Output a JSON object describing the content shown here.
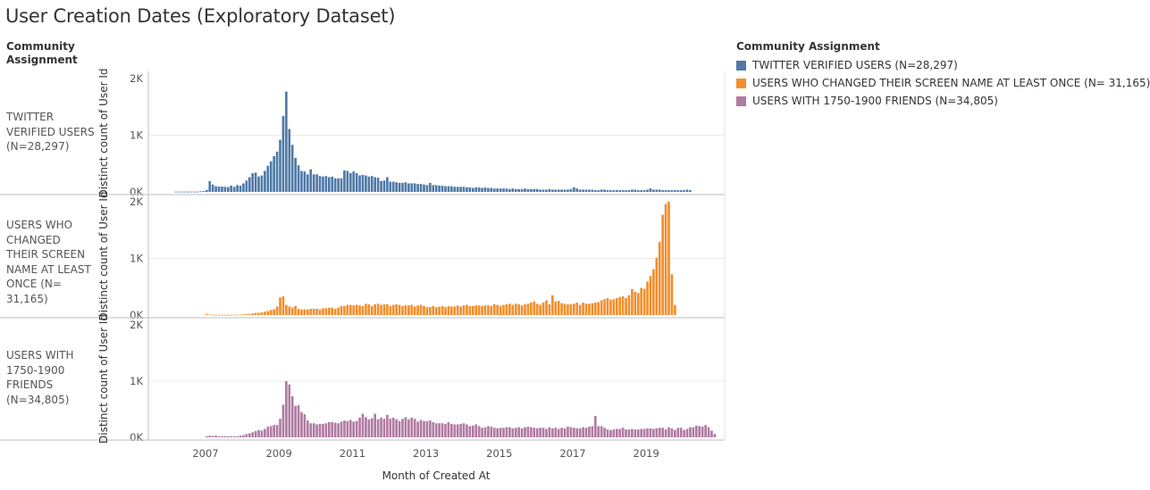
{
  "title": "User Creation Dates (Exploratory Dataset)",
  "row_header": "Community Assignment",
  "legend": {
    "title": "Community Assignment",
    "items": [
      {
        "label": "TWITTER VERIFIED USERS (N=28,297)",
        "color": "#4e79a7"
      },
      {
        "label": "USERS WHO CHANGED THEIR SCREEN NAME AT LEAST ONCE (N= 31,165)",
        "color": "#f28e2b"
      },
      {
        "label": "USERS WITH 1750-1900 FRIENDS (N=34,805)",
        "color": "#b07aa1"
      }
    ]
  },
  "row_labels": [
    "TWITTER VERIFIED USERS (N=28,297)",
    "USERS WHO CHANGED THEIR SCREEN NAME AT LEAST ONCE (N= 31,165)",
    "USERS WITH 1750-1900 FRIENDS (N=34,805)"
  ],
  "chart_data": {
    "type": "bar",
    "xlabel": "Month of Created At",
    "ylabel": "Distinct count of User Id",
    "x_ticks": [
      "2007",
      "2009",
      "2011",
      "2013",
      "2015",
      "2017",
      "2019"
    ],
    "y_ticks": [
      "0K",
      "1K",
      "2K"
    ],
    "ylim": [
      0,
      2000
    ],
    "x_start": "2006-03",
    "grid": true,
    "series": [
      {
        "name": "TWITTER VERIFIED USERS (N=28,297)",
        "color": "#4e79a7",
        "values": [
          5,
          5,
          5,
          5,
          5,
          5,
          5,
          5,
          10,
          15,
          35,
          190,
          130,
          100,
          95,
          95,
          90,
          85,
          110,
          90,
          120,
          110,
          150,
          200,
          260,
          330,
          340,
          270,
          290,
          370,
          460,
          540,
          630,
          710,
          920,
          1340,
          1770,
          1110,
          830,
          600,
          470,
          370,
          360,
          310,
          400,
          310,
          310,
          280,
          270,
          280,
          260,
          270,
          240,
          240,
          240,
          380,
          370,
          330,
          360,
          330,
          290,
          300,
          290,
          270,
          280,
          260,
          250,
          190,
          200,
          260,
          180,
          180,
          170,
          160,
          160,
          170,
          150,
          150,
          150,
          140,
          140,
          130,
          120,
          160,
          120,
          120,
          110,
          110,
          100,
          100,
          100,
          90,
          90,
          90,
          90,
          80,
          80,
          70,
          80,
          80,
          70,
          80,
          70,
          70,
          60,
          60,
          60,
          60,
          60,
          50,
          60,
          50,
          50,
          50,
          60,
          50,
          50,
          50,
          50,
          40,
          40,
          40,
          50,
          40,
          40,
          40,
          40,
          40,
          40,
          50,
          80,
          60,
          40,
          40,
          40,
          40,
          40,
          30,
          30,
          40,
          40,
          30,
          30,
          30,
          30,
          30,
          30,
          30,
          30,
          40,
          40,
          30,
          30,
          30,
          40,
          60,
          40,
          40,
          40,
          30,
          30,
          30,
          30,
          30,
          30,
          30,
          30,
          40,
          30,
          0,
          0
        ]
      },
      {
        "name": "USERS WHO CHANGED THEIR SCREEN NAME AT LEAST ONCE (N= 31,165)",
        "color": "#f28e2b",
        "values": [
          0,
          0,
          0,
          0,
          0,
          0,
          0,
          0,
          0,
          0,
          20,
          10,
          5,
          5,
          5,
          5,
          5,
          5,
          5,
          5,
          5,
          10,
          10,
          20,
          20,
          30,
          40,
          40,
          50,
          60,
          70,
          90,
          100,
          150,
          310,
          330,
          180,
          150,
          130,
          160,
          110,
          100,
          100,
          100,
          110,
          110,
          110,
          100,
          120,
          120,
          130,
          130,
          110,
          130,
          160,
          160,
          180,
          180,
          170,
          180,
          170,
          160,
          200,
          190,
          160,
          190,
          200,
          180,
          190,
          190,
          160,
          180,
          190,
          180,
          160,
          170,
          170,
          180,
          150,
          170,
          180,
          160,
          140,
          140,
          160,
          140,
          150,
          160,
          140,
          160,
          150,
          150,
          170,
          150,
          170,
          180,
          160,
          160,
          170,
          170,
          160,
          170,
          170,
          160,
          190,
          180,
          160,
          180,
          190,
          200,
          180,
          200,
          190,
          170,
          190,
          200,
          220,
          240,
          200,
          180,
          220,
          260,
          190,
          350,
          240,
          250,
          210,
          200,
          190,
          190,
          200,
          220,
          180,
          220,
          200,
          200,
          210,
          220,
          230,
          260,
          280,
          300,
          270,
          280,
          300,
          320,
          330,
          300,
          350,
          460,
          410,
          390,
          480,
          460,
          590,
          690,
          810,
          1010,
          1290,
          1770,
          1960,
          2000,
          720,
          180,
          0
        ]
      },
      {
        "name": "USERS WITH 1750-1900 FRIENDS (N=34,805)",
        "color": "#b07aa1",
        "values": [
          0,
          0,
          0,
          0,
          0,
          0,
          0,
          0,
          0,
          0,
          20,
          30,
          25,
          30,
          20,
          20,
          20,
          20,
          20,
          20,
          20,
          30,
          40,
          60,
          70,
          90,
          110,
          130,
          120,
          150,
          190,
          200,
          220,
          220,
          330,
          580,
          1000,
          940,
          730,
          560,
          570,
          450,
          410,
          300,
          250,
          250,
          230,
          240,
          240,
          250,
          270,
          270,
          260,
          250,
          280,
          300,
          290,
          310,
          280,
          290,
          350,
          420,
          360,
          320,
          340,
          420,
          320,
          350,
          330,
          400,
          330,
          350,
          320,
          290,
          330,
          360,
          320,
          350,
          330,
          280,
          310,
          290,
          290,
          300,
          270,
          250,
          250,
          250,
          240,
          270,
          240,
          230,
          230,
          240,
          250,
          230,
          200,
          210,
          230,
          200,
          170,
          180,
          200,
          190,
          170,
          160,
          170,
          170,
          180,
          180,
          160,
          170,
          180,
          160,
          180,
          190,
          180,
          170,
          160,
          170,
          170,
          150,
          180,
          160,
          170,
          150,
          170,
          160,
          190,
          180,
          170,
          160,
          160,
          180,
          170,
          190,
          200,
          380,
          200,
          200,
          170,
          140,
          130,
          140,
          150,
          150,
          170,
          140,
          140,
          150,
          140,
          140,
          150,
          150,
          160,
          160,
          150,
          160,
          170,
          170,
          140,
          180,
          160,
          130,
          170,
          170,
          130,
          150,
          180,
          180,
          210,
          200,
          190,
          220,
          180,
          120,
          60
        ]
      }
    ]
  }
}
